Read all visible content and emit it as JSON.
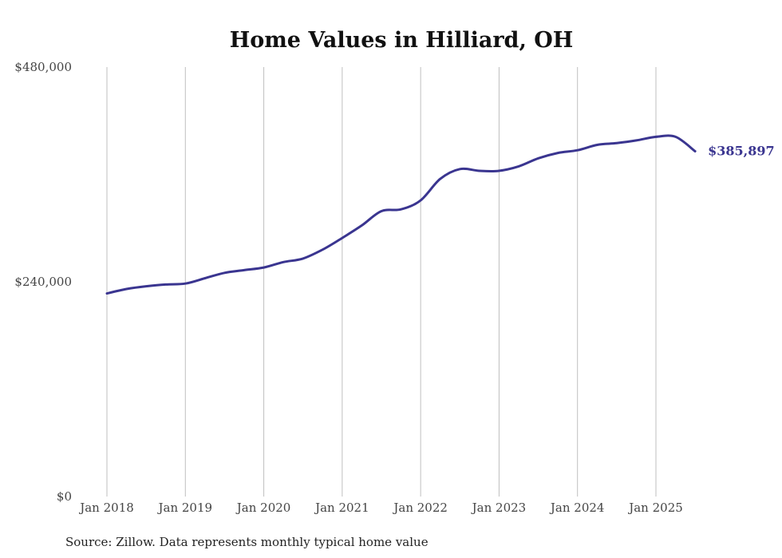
{
  "chart_data": {
    "type": "line",
    "title": "Home Values in Hilliard, OH",
    "source_note": "Source: Zillow. Data represents monthly typical home value",
    "ylim": [
      0,
      480000
    ],
    "y_ticks": [
      {
        "value": 0,
        "label": "$0"
      },
      {
        "value": 240000,
        "label": "$240,000"
      },
      {
        "value": 480000,
        "label": "$480,000"
      }
    ],
    "x_ticks": [
      {
        "value": "2018-01",
        "label": "Jan 2018"
      },
      {
        "value": "2019-01",
        "label": "Jan 2019"
      },
      {
        "value": "2020-01",
        "label": "Jan 2020"
      },
      {
        "value": "2021-01",
        "label": "Jan 2021"
      },
      {
        "value": "2022-01",
        "label": "Jan 2022"
      },
      {
        "value": "2023-01",
        "label": "Jan 2023"
      },
      {
        "value": "2024-01",
        "label": "Jan 2024"
      },
      {
        "value": "2025-01",
        "label": "Jan 2025"
      }
    ],
    "grid": "vertical",
    "line_color": "#3a3590",
    "end_label": "$385,897",
    "series": [
      {
        "x": [
          "2018-01",
          "2018-04",
          "2018-07",
          "2018-10",
          "2019-01",
          "2019-04",
          "2019-07",
          "2019-10",
          "2020-01",
          "2020-04",
          "2020-07",
          "2020-10",
          "2021-01",
          "2021-04",
          "2021-07",
          "2021-10",
          "2022-01",
          "2022-04",
          "2022-07",
          "2022-10",
          "2023-01",
          "2023-04",
          "2023-07",
          "2023-10",
          "2024-01",
          "2024-04",
          "2024-07",
          "2024-10",
          "2025-01",
          "2025-04",
          "2025-07"
        ],
        "values": [
          227000,
          232000,
          235000,
          237000,
          238000,
          244000,
          250000,
          253000,
          256000,
          262000,
          266000,
          276000,
          289000,
          303000,
          319000,
          321000,
          331000,
          355000,
          366000,
          364000,
          364000,
          369000,
          378000,
          384000,
          387000,
          393000,
          395000,
          398000,
          402000,
          402000,
          385897
        ]
      }
    ]
  }
}
